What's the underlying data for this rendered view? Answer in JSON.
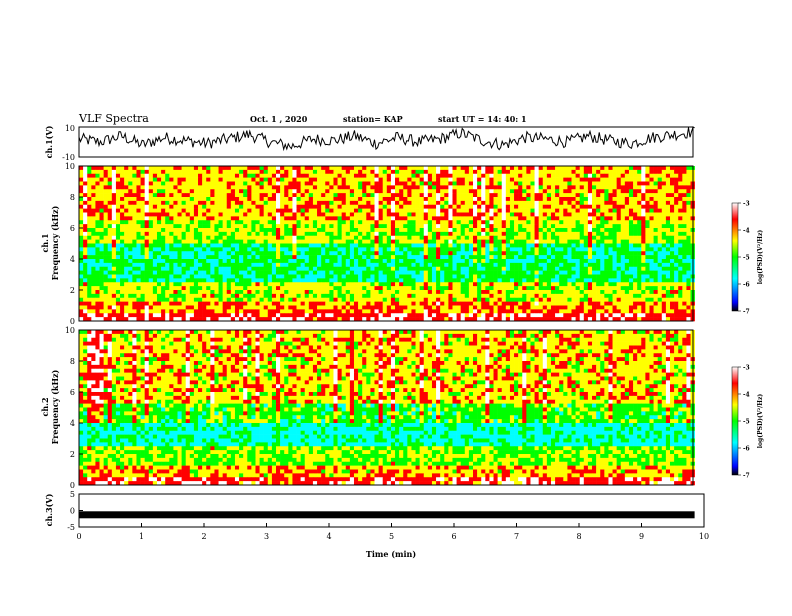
{
  "header": {
    "title": "VLF Spectra",
    "date": "Oct. 1 , 2020",
    "station": "station= KAP",
    "start": "start  UT  =   14: 40: 1"
  },
  "chart_data": [
    {
      "type": "line",
      "name": "ch1-waveform",
      "ylabel": "ch.1(V)",
      "ylim": [
        -10,
        10
      ],
      "yticks": [
        "10",
        "-10"
      ],
      "xlim": [
        0,
        10
      ],
      "x_end": 9.85,
      "approx_level": [
        2,
        0,
        4,
        -2,
        3,
        1,
        -1,
        2,
        5,
        0,
        -3,
        2,
        1,
        4,
        -1,
        3,
        0,
        2,
        6,
        1,
        -2,
        3,
        2,
        0,
        4,
        1,
        -1,
        3,
        5,
        7
      ]
    },
    {
      "type": "heatmap",
      "name": "ch1-spectrogram",
      "ylabel": "ch.1\nFrequency (kHz)",
      "ylabel_lines": [
        "ch.1",
        "Frequency (kHz)"
      ],
      "ylim": [
        0,
        10
      ],
      "yticks": [
        "0",
        "2",
        "4",
        "6",
        "8",
        "10"
      ],
      "xlim": [
        0,
        10
      ],
      "x_end": 9.85,
      "colorbar": {
        "label": "log(PSD)(V²/Hz)",
        "range": [
          -7,
          -3
        ],
        "ticks": [
          "-3",
          "-4",
          "-5",
          "-6",
          "-7"
        ],
        "colormap": [
          "#000000",
          "#0000ff",
          "#00ffff",
          "#00ff00",
          "#ffff00",
          "#ff0000",
          "#ffffff"
        ]
      },
      "band_profile_khz": [
        {
          "from": 0,
          "to": 0.4,
          "level": -3.5
        },
        {
          "from": 0.4,
          "to": 1.2,
          "level": -4.0
        },
        {
          "from": 1.2,
          "to": 2.5,
          "level": -4.5
        },
        {
          "from": 2.5,
          "to": 5.0,
          "level": -5.3
        },
        {
          "from": 5.0,
          "to": 6.5,
          "level": -4.6
        },
        {
          "from": 6.5,
          "to": 10,
          "level": -4.2
        }
      ]
    },
    {
      "type": "heatmap",
      "name": "ch2-spectrogram",
      "ylabel": "ch.2\nFrequency (kHz)",
      "ylabel_lines": [
        "ch.2",
        "Frequency (kHz)"
      ],
      "ylim": [
        0,
        10
      ],
      "yticks": [
        "0",
        "2",
        "4",
        "6",
        "8",
        "10"
      ],
      "xlim": [
        0,
        10
      ],
      "x_end": 9.85,
      "colorbar": {
        "label": "log(PSD)(V²/Hz)",
        "range": [
          -7,
          -3
        ],
        "ticks": [
          "-3",
          "-4",
          "-5",
          "-6",
          "-7"
        ],
        "colormap": [
          "#000000",
          "#0000ff",
          "#00ffff",
          "#00ff00",
          "#ffff00",
          "#ff0000",
          "#ffffff"
        ]
      },
      "band_profile_khz": [
        {
          "from": 0,
          "to": 0.4,
          "level": -3.6
        },
        {
          "from": 0.4,
          "to": 1.2,
          "level": -4.2
        },
        {
          "from": 1.2,
          "to": 2.5,
          "level": -4.8
        },
        {
          "from": 2.5,
          "to": 4.0,
          "level": -5.6
        },
        {
          "from": 4.0,
          "to": 5.2,
          "level": -5.0
        },
        {
          "from": 5.2,
          "to": 10,
          "level": -4.3
        }
      ]
    },
    {
      "type": "line",
      "name": "ch3-waveform",
      "ylabel": "ch.3(V)",
      "ylim": [
        -5,
        5
      ],
      "yticks": [
        "5",
        "0",
        "-5"
      ],
      "xlim": [
        0,
        10
      ],
      "x_end": 9.85,
      "level": -1.3,
      "xlabel": "Time (min)",
      "xticks": [
        "0",
        "1",
        "2",
        "3",
        "4",
        "5",
        "6",
        "7",
        "8",
        "9",
        "10"
      ]
    }
  ]
}
